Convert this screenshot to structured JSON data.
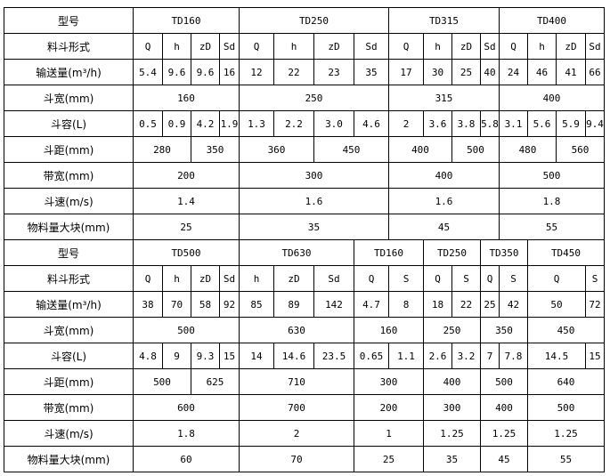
{
  "sections": [
    {
      "rows": [
        {
          "label": "型号",
          "cells": [
            "TD160",
            "TD250",
            "TD315",
            "TD400"
          ]
        },
        {
          "label": "料斗形式",
          "cells": [
            "Q",
            "h",
            "zD",
            "Sd",
            "Q",
            "h",
            "zD",
            "Sd",
            "Q",
            "h",
            "zD",
            "Sd",
            "Q",
            "h",
            "zD",
            "Sd"
          ]
        },
        {
          "label": "输送量(m³/h)",
          "cells": [
            "5.4",
            "9.6",
            "9.6",
            "16",
            "12",
            "22",
            "23",
            "35",
            "17",
            "30",
            "25",
            "40",
            "24",
            "46",
            "41",
            "66"
          ]
        },
        {
          "label": "斗宽(mm)",
          "cells": [
            "160",
            "250",
            "315",
            "400"
          ]
        },
        {
          "label": "斗容(L)",
          "cells": [
            "0.5",
            "0.9",
            "4.2",
            "1.9",
            "1.3",
            "2.2",
            "3.0",
            "4.6",
            "2",
            "3.6",
            "3.8",
            "5.8",
            "3.1",
            "5.6",
            "5.9",
            "9.4"
          ]
        },
        {
          "label": "斗距(mm)",
          "cells": [
            "280",
            "350",
            "360",
            "450",
            "400",
            "500",
            "480",
            "560"
          ]
        },
        {
          "label": "带宽(mm)",
          "cells": [
            "200",
            "300",
            "400",
            "500"
          ]
        },
        {
          "label": "斗速(m/s)",
          "cells": [
            "1.4",
            "1.6",
            "1.6",
            "1.8"
          ]
        },
        {
          "label": "物料量大块(mm)",
          "cells": [
            "25",
            "35",
            "45",
            "55"
          ]
        }
      ]
    },
    {
      "rows": [
        {
          "label": "型号",
          "cells": [
            "TD500",
            "TD630",
            "TD160",
            "TD250",
            "TD350",
            "TD450"
          ]
        },
        {
          "label": "料斗形式",
          "cells": [
            "Q",
            "h",
            "zD",
            "Sd",
            "h",
            "zD",
            "Sd",
            "Q",
            "S",
            "Q",
            "S",
            "Q",
            "S",
            "Q",
            "S"
          ]
        },
        {
          "label": "输送量(m³/h)",
          "cells": [
            "38",
            "70",
            "58",
            "92",
            "85",
            "89",
            "142",
            "4.7",
            "8",
            "18",
            "22",
            "25",
            "42",
            "50",
            "72"
          ]
        },
        {
          "label": "斗宽(mm)",
          "cells": [
            "500",
            "630",
            "160",
            "250",
            "350",
            "450"
          ]
        },
        {
          "label": "斗容(L)",
          "cells": [
            "4.8",
            "9",
            "9.3",
            "15",
            "14",
            "14.6",
            "23.5",
            "0.65",
            "1.1",
            "2.6",
            "3.2",
            "7",
            "7.8",
            "14.5",
            "15"
          ]
        },
        {
          "label": "斗距(mm)",
          "cells": [
            "500",
            "625",
            "710",
            "300",
            "400",
            "500",
            "640"
          ]
        },
        {
          "label": "带宽(mm)",
          "cells": [
            "600",
            "700",
            "200",
            "300",
            "400",
            "500"
          ]
        },
        {
          "label": "斗速(m/s)",
          "cells": [
            "1.8",
            "2",
            "1",
            "1.25",
            "1.25",
            "1.25"
          ]
        },
        {
          "label": "物料量大块(mm)",
          "cells": [
            "60",
            "70",
            "25",
            "35",
            "45",
            "55"
          ]
        }
      ]
    }
  ]
}
